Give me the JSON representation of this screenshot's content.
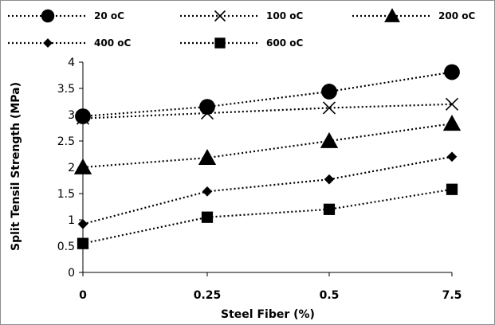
{
  "chart_data": {
    "type": "line",
    "title": "",
    "xlabel": "Steel Fiber (%)",
    "ylabel": "Split Tensil Strength (MPa)",
    "categories": [
      "0",
      "0.25",
      "0.5",
      "7.5"
    ],
    "ylim": [
      0,
      4
    ],
    "yticks": [
      "0",
      "0.5",
      "1",
      "1.5",
      "2",
      "2.5",
      "3",
      "3.5",
      "4"
    ],
    "grid": false,
    "legend_position": "top",
    "series": [
      {
        "name": "20 oC",
        "marker": "circle",
        "values": [
          2.97,
          3.15,
          3.44,
          3.81
        ]
      },
      {
        "name": "100 oC",
        "marker": "x",
        "values": [
          2.93,
          3.03,
          3.13,
          3.2
        ]
      },
      {
        "name": "200 oC",
        "marker": "triangle",
        "values": [
          2.0,
          2.18,
          2.5,
          2.83
        ]
      },
      {
        "name": "400 oC",
        "marker": "diamond",
        "values": [
          0.92,
          1.54,
          1.77,
          2.2
        ]
      },
      {
        "name": "600 oC",
        "marker": "square",
        "values": [
          0.55,
          1.05,
          1.2,
          1.58
        ]
      }
    ],
    "colors": {
      "series": "#000000",
      "axis": "#000000",
      "frame": "#8c8c8c"
    }
  }
}
